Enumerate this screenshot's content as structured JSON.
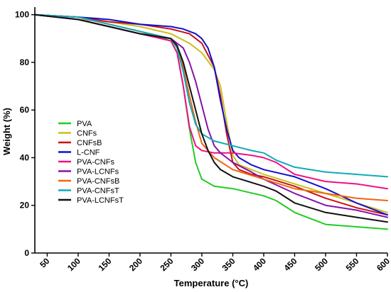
{
  "chart_data": {
    "type": "line",
    "xlabel": "Temperature (°C)",
    "ylabel": "Weight (%)",
    "xlim": [
      30,
      600
    ],
    "ylim": [
      0,
      102
    ],
    "xticks": [
      50,
      100,
      150,
      200,
      250,
      300,
      350,
      400,
      450,
      500,
      550,
      600
    ],
    "yticks": [
      0,
      20,
      40,
      60,
      80,
      100
    ],
    "grid": false,
    "legend_position": "center-left",
    "series": [
      {
        "name": "PVA",
        "color": "#22cc22",
        "x": [
          30,
          100,
          150,
          200,
          250,
          260,
          270,
          280,
          290,
          300,
          320,
          350,
          400,
          420,
          450,
          500,
          550,
          600
        ],
        "y": [
          100,
          99,
          96,
          93,
          89,
          84,
          70,
          52,
          38,
          31,
          28,
          27,
          24,
          22,
          17,
          12,
          11,
          10
        ]
      },
      {
        "name": "CNFs",
        "color": "#c8c020",
        "x": [
          30,
          100,
          150,
          200,
          250,
          280,
          300,
          320,
          330,
          340,
          350,
          360,
          380,
          400,
          450,
          500,
          550,
          600
        ],
        "y": [
          100,
          98,
          97,
          95,
          92,
          88,
          84,
          77,
          70,
          55,
          41,
          37,
          35,
          33,
          29,
          25,
          21,
          17
        ]
      },
      {
        "name": "CNFsB",
        "color": "#cc1111",
        "x": [
          30,
          100,
          150,
          200,
          250,
          280,
          300,
          320,
          330,
          340,
          350,
          360,
          380,
          400,
          450,
          500,
          550,
          600
        ],
        "y": [
          100,
          99,
          97,
          96,
          94,
          92,
          88,
          78,
          66,
          50,
          38,
          35,
          33,
          32,
          28,
          23,
          19,
          16
        ]
      },
      {
        "name": "L-CNF",
        "color": "#1111cc",
        "x": [
          30,
          100,
          150,
          200,
          250,
          270,
          280,
          290,
          300,
          310,
          320,
          330,
          340,
          350,
          360,
          380,
          400,
          450,
          500,
          550,
          600
        ],
        "y": [
          100,
          99,
          98,
          96,
          95,
          94,
          93,
          92,
          90,
          86,
          78,
          64,
          52,
          43,
          40,
          37,
          35,
          32,
          27,
          21,
          16
        ]
      },
      {
        "name": "PVA-CNFs",
        "color": "#ee1188",
        "x": [
          30,
          100,
          150,
          200,
          250,
          260,
          270,
          280,
          290,
          300,
          320,
          350,
          380,
          400,
          420,
          450,
          500,
          550,
          600
        ],
        "y": [
          100,
          98,
          95,
          92,
          89,
          84,
          70,
          53,
          45,
          43,
          42,
          42,
          41,
          40,
          38,
          33,
          30,
          29,
          27
        ]
      },
      {
        "name": "PVA-LCNFs",
        "color": "#8811aa",
        "x": [
          30,
          100,
          150,
          200,
          250,
          270,
          280,
          290,
          300,
          310,
          320,
          330,
          340,
          350,
          380,
          400,
          450,
          500,
          550,
          600
        ],
        "y": [
          100,
          98,
          95,
          92,
          90,
          86,
          80,
          72,
          62,
          52,
          45,
          42,
          40,
          38,
          34,
          31,
          25,
          20,
          18,
          15
        ]
      },
      {
        "name": "PVA-CNFsB",
        "color": "#ee6611",
        "x": [
          30,
          100,
          150,
          200,
          250,
          260,
          270,
          280,
          290,
          300,
          320,
          350,
          400,
          450,
          500,
          550,
          600
        ],
        "y": [
          100,
          99,
          96,
          93,
          90,
          87,
          78,
          66,
          55,
          46,
          40,
          35,
          31,
          27,
          25,
          23,
          22
        ]
      },
      {
        "name": "PVA-CNFsT",
        "color": "#11aabb",
        "x": [
          30,
          100,
          150,
          200,
          250,
          260,
          270,
          280,
          290,
          300,
          320,
          350,
          380,
          400,
          420,
          450,
          500,
          550,
          600
        ],
        "y": [
          100,
          99,
          96,
          93,
          90,
          86,
          76,
          63,
          54,
          50,
          47,
          45,
          43,
          42,
          39,
          36,
          34,
          33,
          32
        ]
      },
      {
        "name": "PVA-LCNFsT",
        "color": "#111111",
        "x": [
          30,
          100,
          150,
          200,
          250,
          260,
          270,
          280,
          290,
          300,
          310,
          320,
          330,
          350,
          400,
          420,
          450,
          500,
          550,
          600
        ],
        "y": [
          100,
          98,
          95,
          92,
          90,
          87,
          80,
          70,
          60,
          50,
          43,
          38,
          35,
          32,
          28,
          26,
          21,
          17,
          15,
          13
        ]
      }
    ]
  }
}
